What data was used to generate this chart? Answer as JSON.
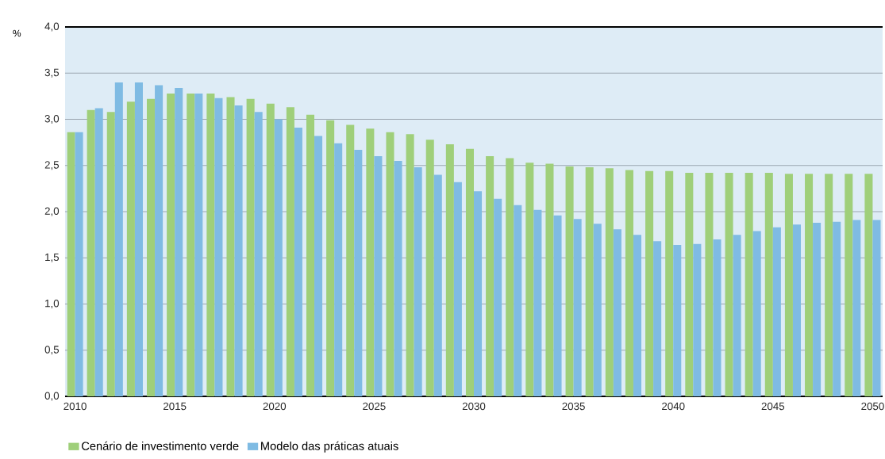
{
  "chart_data": {
    "type": "bar",
    "ylabel": "%",
    "x": [
      2010,
      2011,
      2012,
      2013,
      2014,
      2015,
      2016,
      2017,
      2018,
      2019,
      2020,
      2021,
      2022,
      2023,
      2024,
      2025,
      2026,
      2027,
      2028,
      2029,
      2030,
      2031,
      2032,
      2033,
      2034,
      2035,
      2036,
      2037,
      2038,
      2039,
      2040,
      2041,
      2042,
      2043,
      2044,
      2045,
      2046,
      2047,
      2048,
      2049,
      2050
    ],
    "series": [
      {
        "name": "Cenário de investimento verde",
        "color": "#9fcf7a",
        "values": [
          2.86,
          3.1,
          3.08,
          3.19,
          3.22,
          3.28,
          3.28,
          3.28,
          3.24,
          3.22,
          3.17,
          3.13,
          3.05,
          2.99,
          2.94,
          2.9,
          2.86,
          2.84,
          2.78,
          2.73,
          2.68,
          2.6,
          2.58,
          2.53,
          2.52,
          2.49,
          2.48,
          2.47,
          2.45,
          2.44,
          2.44,
          2.42,
          2.42,
          2.42,
          2.42,
          2.42,
          2.41,
          2.41,
          2.41,
          2.41,
          2.41
        ]
      },
      {
        "name": "Modelo das práticas atuais",
        "color": "#7fbbe3",
        "values": [
          2.86,
          3.12,
          3.4,
          3.4,
          3.37,
          3.34,
          3.28,
          3.23,
          3.15,
          3.08,
          3.0,
          2.91,
          2.82,
          2.74,
          2.67,
          2.6,
          2.55,
          2.48,
          2.4,
          2.32,
          2.22,
          2.14,
          2.07,
          2.02,
          1.96,
          1.92,
          1.87,
          1.81,
          1.75,
          1.68,
          1.64,
          1.65,
          1.7,
          1.75,
          1.79,
          1.83,
          1.86,
          1.88,
          1.89,
          1.91,
          1.91
        ]
      }
    ],
    "xlim": [
      2009.5,
      2050.5
    ],
    "xticks": [
      2010,
      2015,
      2020,
      2025,
      2030,
      2035,
      2040,
      2045,
      2050
    ],
    "ylim": [
      0,
      4
    ],
    "yticks": [
      {
        "value": 0,
        "label": "0,0"
      },
      {
        "value": 0.5,
        "label": "0,5"
      },
      {
        "value": 1,
        "label": "1,0"
      },
      {
        "value": 1.5,
        "label": "1,5"
      },
      {
        "value": 2,
        "label": "2,0"
      },
      {
        "value": 2.5,
        "label": "2,5"
      },
      {
        "value": 3,
        "label": "3,0"
      },
      {
        "value": 3.5,
        "label": "3,5"
      },
      {
        "value": 4,
        "label": "4,0"
      }
    ],
    "grid": "y",
    "legend": "bottom left"
  }
}
